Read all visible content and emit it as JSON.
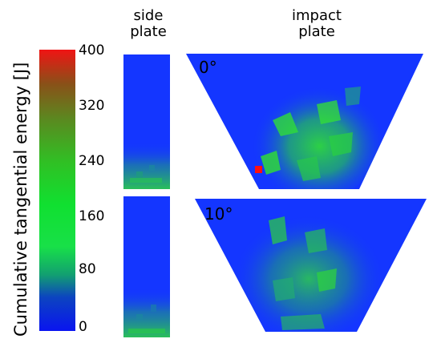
{
  "colorbar": {
    "label": "Cumulative tangential energy [J]",
    "ticks": [
      "400",
      "320",
      "240",
      "160",
      "80",
      "0"
    ],
    "min": 0,
    "max": 400
  },
  "columns": {
    "side": "side\nplate",
    "impact": "impact\nplate"
  },
  "angles": [
    "0°",
    "10°"
  ],
  "colors": {
    "plate_base": "#1436ff",
    "hot_spot": "#ff1010",
    "mid": "#2ed83c"
  }
}
